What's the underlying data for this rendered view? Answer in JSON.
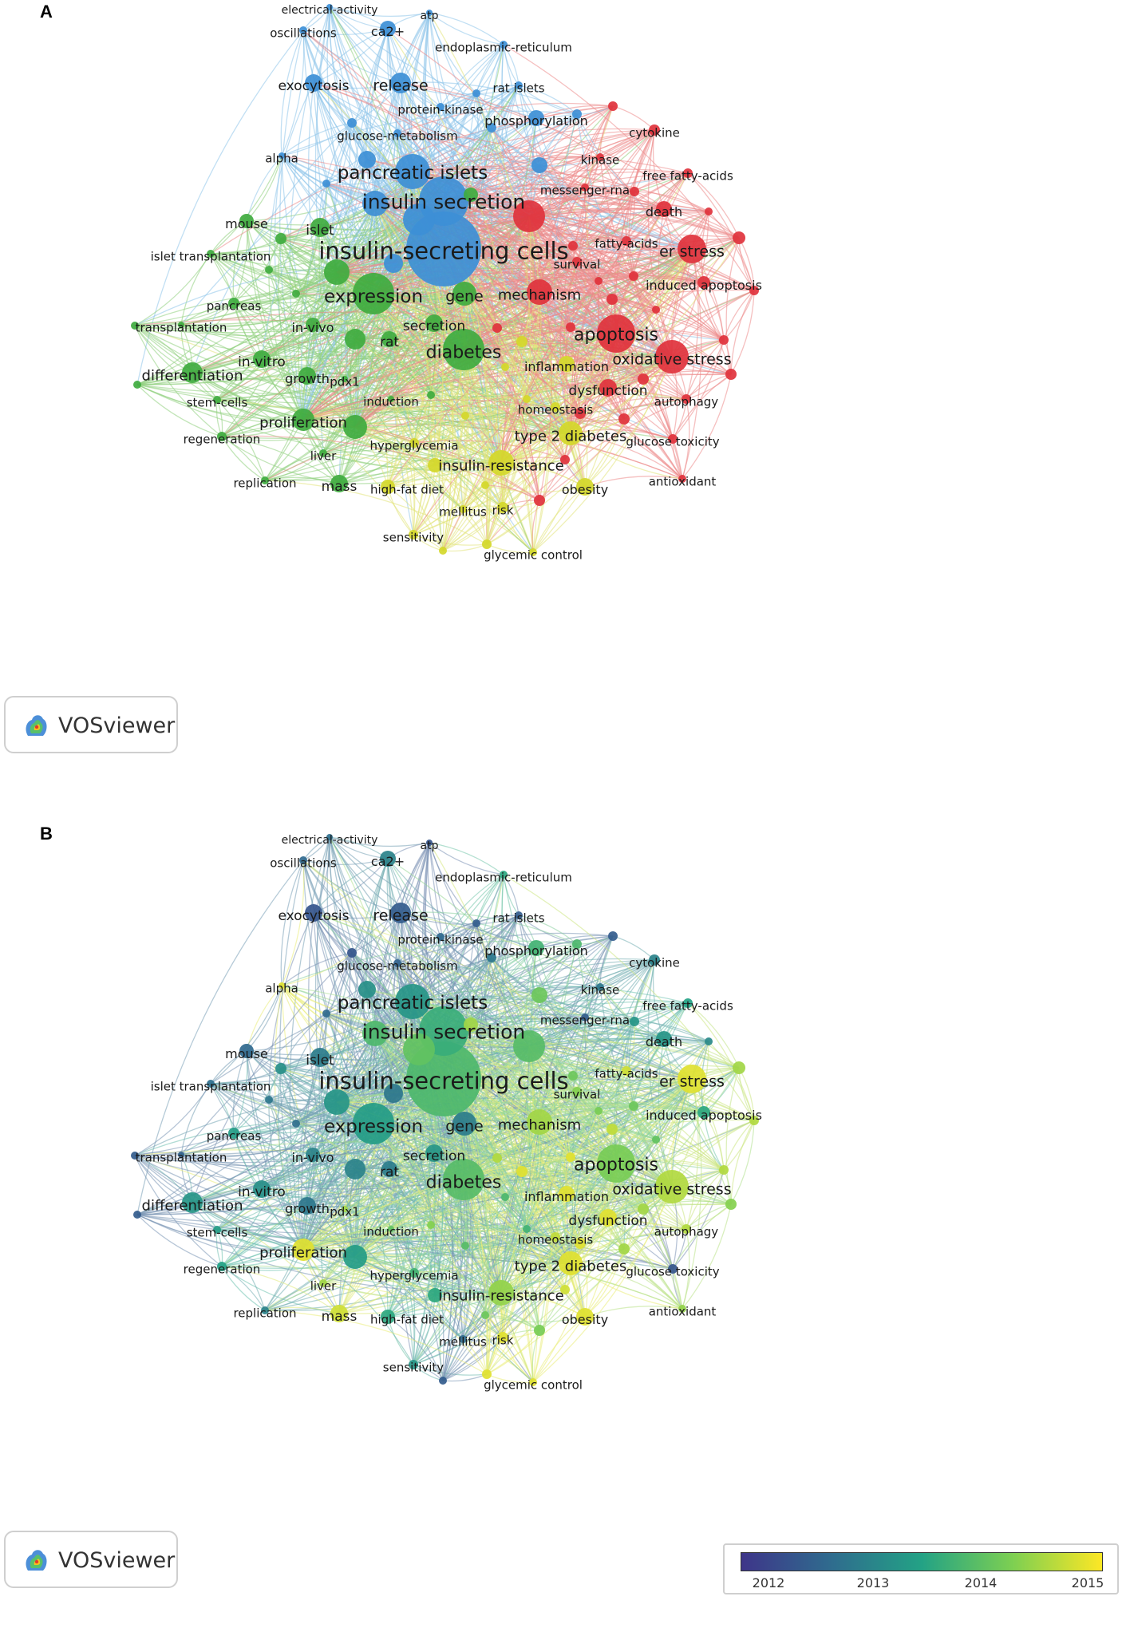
{
  "panels": [
    {
      "letter": "A",
      "mode": "cluster"
    },
    {
      "letter": "B",
      "mode": "overlay"
    }
  ],
  "vosviewer_label": "VOSviewer",
  "cluster_colors": {
    "red": "#e0323c",
    "green": "#3fab3f",
    "blue": "#3d8fd6",
    "yellow": "#d4d82a"
  },
  "cluster_edge_colors": {
    "red": "#ec8b8b",
    "green": "#8fcf7e",
    "blue": "#8ec4ea",
    "yellow": "#e2e37a"
  },
  "overlay_scale": {
    "colors": [
      "#3e3589",
      "#2f6c8e",
      "#23a285",
      "#7ccf52",
      "#fde725"
    ],
    "min": 2011.8,
    "max": 2015.2,
    "ticks": [
      "2012",
      "2013",
      "2014",
      "2015"
    ]
  },
  "keywords": [
    {
      "label": "insulin-secreting cells",
      "cluster": "blue",
      "year": 2013.9
    },
    {
      "label": "insulin secretion",
      "cluster": "blue",
      "year": 2013.7
    },
    {
      "label": "pancreatic islets",
      "cluster": "blue",
      "year": 2013.3
    },
    {
      "label": "release",
      "cluster": "blue",
      "year": 2012.4
    },
    {
      "label": "exocytosis",
      "cluster": "blue",
      "year": 2012.3
    },
    {
      "label": "ca2+",
      "cluster": "blue",
      "year": 2013.0
    },
    {
      "label": "oscillations",
      "cluster": "blue",
      "year": 2012.6
    },
    {
      "label": "electrical-activity",
      "cluster": "blue",
      "year": 2012.7
    },
    {
      "label": "atp",
      "cluster": "blue",
      "year": 2012.3
    },
    {
      "label": "endoplasmic-reticulum",
      "cluster": "blue",
      "year": 2013.6
    },
    {
      "label": "rat islets",
      "cluster": "blue",
      "year": 2012.4
    },
    {
      "label": "protein-kinase",
      "cluster": "blue",
      "year": 2012.6
    },
    {
      "label": "glucose-metabolism",
      "cluster": "blue",
      "year": 2012.5
    },
    {
      "label": "phosphorylation",
      "cluster": "blue",
      "year": 2013.8
    },
    {
      "label": "alpha",
      "cluster": "blue",
      "year": 2015.0
    },
    {
      "label": "expression",
      "cluster": "green",
      "year": 2013.4
    },
    {
      "label": "gene",
      "cluster": "green",
      "year": 2012.9
    },
    {
      "label": "islet",
      "cluster": "green",
      "year": 2012.9
    },
    {
      "label": "mouse",
      "cluster": "green",
      "year": 2012.6
    },
    {
      "label": "islet transplantation",
      "cluster": "green",
      "year": 2012.7
    },
    {
      "label": "pancreas",
      "cluster": "green",
      "year": 2013.4
    },
    {
      "label": "transplantation",
      "cluster": "green",
      "year": 2012.5
    },
    {
      "label": "in-vivo",
      "cluster": "green",
      "year": 2013.0
    },
    {
      "label": "in-vitro",
      "cluster": "green",
      "year": 2013.2
    },
    {
      "label": "differentiation",
      "cluster": "green",
      "year": 2013.3
    },
    {
      "label": "growth",
      "cluster": "green",
      "year": 2012.8
    },
    {
      "label": "pdx1",
      "cluster": "green",
      "year": 2014.6
    },
    {
      "label": "stem-cells",
      "cluster": "green",
      "year": 2013.4
    },
    {
      "label": "regeneration",
      "cluster": "green",
      "year": 2013.5
    },
    {
      "label": "proliferation",
      "cluster": "green",
      "year": 2015.0
    },
    {
      "label": "liver",
      "cluster": "green",
      "year": 2014.6
    },
    {
      "label": "replication",
      "cluster": "green",
      "year": 2013.0
    },
    {
      "label": "mass",
      "cluster": "green",
      "year": 2014.9
    },
    {
      "label": "rat",
      "cluster": "green",
      "year": 2012.9
    },
    {
      "label": "secretion",
      "cluster": "green",
      "year": 2013.3
    },
    {
      "label": "diabetes",
      "cluster": "green",
      "year": 2014.0
    },
    {
      "label": "induction",
      "cluster": "green",
      "year": 2014.1
    },
    {
      "label": "apoptosis",
      "cluster": "red",
      "year": 2014.3
    },
    {
      "label": "oxidative stress",
      "cluster": "red",
      "year": 2014.7
    },
    {
      "label": "er stress",
      "cluster": "red",
      "year": 2015.0
    },
    {
      "label": "mechanism",
      "cluster": "red",
      "year": 2014.6
    },
    {
      "label": "death",
      "cluster": "red",
      "year": 2013.3
    },
    {
      "label": "cytokine",
      "cluster": "red",
      "year": 2013.0
    },
    {
      "label": "kinase",
      "cluster": "red",
      "year": 2012.8
    },
    {
      "label": "free fatty-acids",
      "cluster": "red",
      "year": 2013.5
    },
    {
      "label": "messenger-rna",
      "cluster": "red",
      "year": 2012.4
    },
    {
      "label": "fatty-acids",
      "cluster": "red",
      "year": 2014.9
    },
    {
      "label": "survival",
      "cluster": "red",
      "year": 2014.4
    },
    {
      "label": "induced apoptosis",
      "cluster": "red",
      "year": 2013.6
    },
    {
      "label": "dysfunction",
      "cluster": "red",
      "year": 2015.0
    },
    {
      "label": "autophagy",
      "cluster": "red",
      "year": 2014.7
    },
    {
      "label": "glucose toxicity",
      "cluster": "red",
      "year": 2012.3
    },
    {
      "label": "antioxidant",
      "cluster": "red",
      "year": 2014.5
    },
    {
      "label": "inflammation",
      "cluster": "yellow",
      "year": 2015.0
    },
    {
      "label": "homeostasis",
      "cluster": "yellow",
      "year": 2014.8
    },
    {
      "label": "type 2 diabetes",
      "cluster": "yellow",
      "year": 2015.0
    },
    {
      "label": "insulin-resistance",
      "cluster": "yellow",
      "year": 2014.5
    },
    {
      "label": "hyperglycemia",
      "cluster": "yellow",
      "year": 2013.8
    },
    {
      "label": "high-fat diet",
      "cluster": "yellow",
      "year": 2013.6
    },
    {
      "label": "mellitus",
      "cluster": "yellow",
      "year": 2012.6
    },
    {
      "label": "risk",
      "cluster": "yellow",
      "year": 2015.0
    },
    {
      "label": "obesity",
      "cluster": "yellow",
      "year": 2015.0
    },
    {
      "label": "sensitivity",
      "cluster": "yellow",
      "year": 2013.3
    },
    {
      "label": "glycemic control",
      "cluster": "yellow",
      "year": 2015.0
    }
  ]
}
